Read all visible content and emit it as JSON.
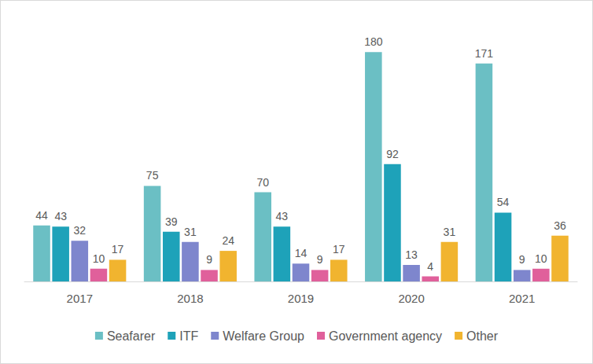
{
  "chart_data": {
    "type": "bar",
    "categories": [
      "2017",
      "2018",
      "2019",
      "2020",
      "2021"
    ],
    "series": [
      {
        "name": "Seafarer",
        "color": "#6bbfc4",
        "values": [
          44,
          75,
          70,
          180,
          171
        ]
      },
      {
        "name": "ITF",
        "color": "#1ea2b9",
        "values": [
          43,
          39,
          43,
          92,
          54
        ]
      },
      {
        "name": "Welfare Group",
        "color": "#7e86cd",
        "values": [
          32,
          31,
          14,
          13,
          9
        ]
      },
      {
        "name": "Government agency",
        "color": "#e0609b",
        "values": [
          10,
          9,
          9,
          4,
          10
        ]
      },
      {
        "name": "Other",
        "color": "#f1b42f",
        "values": [
          17,
          24,
          17,
          31,
          36
        ]
      }
    ],
    "ylim": [
      0,
      190
    ],
    "grid": false,
    "legend": "bottom",
    "data_labels": true,
    "tick_labels": "x"
  }
}
